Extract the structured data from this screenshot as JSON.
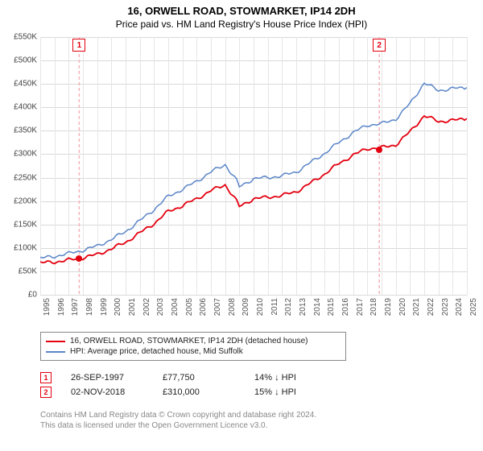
{
  "title": "16, ORWELL ROAD, STOWMARKET, IP14 2DH",
  "subtitle": "Price paid vs. HM Land Registry's House Price Index (HPI)",
  "chart": {
    "type": "line",
    "x_years": [
      1995,
      1996,
      1997,
      1998,
      1999,
      2000,
      2001,
      2002,
      2003,
      2004,
      2005,
      2006,
      2007,
      2008,
      2009,
      2010,
      2011,
      2012,
      2013,
      2014,
      2015,
      2016,
      2017,
      2018,
      2019,
      2020,
      2021,
      2022,
      2023,
      2024,
      2025
    ],
    "x_range": [
      1995,
      2025
    ],
    "ylim": [
      0,
      550000
    ],
    "ytick_step": 50000,
    "y_tick_labels": [
      "£0",
      "£50K",
      "£100K",
      "£150K",
      "£200K",
      "£250K",
      "£300K",
      "£350K",
      "£400K",
      "£450K",
      "£500K",
      "£550K"
    ],
    "grid_color": "#d9d9d9",
    "background_color": "#ffffff",
    "label_fontsize": 10,
    "series": [
      {
        "name": "16, ORWELL ROAD, STOWMARKET, IP14 2DH (detached house)",
        "color": "#e3000f",
        "line_width": 1.8,
        "points": [
          [
            1995,
            68000
          ],
          [
            1996,
            70000
          ],
          [
            1997,
            74000
          ],
          [
            1998,
            79000
          ],
          [
            1999,
            86000
          ],
          [
            2000,
            98000
          ],
          [
            2001,
            112000
          ],
          [
            2002,
            132000
          ],
          [
            2003,
            152000
          ],
          [
            2004,
            178000
          ],
          [
            2005,
            190000
          ],
          [
            2006,
            205000
          ],
          [
            2007,
            222000
          ],
          [
            2008,
            235000
          ],
          [
            2008.8,
            200000
          ],
          [
            2009,
            188000
          ],
          [
            2010,
            205000
          ],
          [
            2011,
            208000
          ],
          [
            2012,
            212000
          ],
          [
            2013,
            220000
          ],
          [
            2014,
            238000
          ],
          [
            2015,
            258000
          ],
          [
            2016,
            280000
          ],
          [
            2017,
            298000
          ],
          [
            2018,
            312000
          ],
          [
            2019,
            314000
          ],
          [
            2020,
            320000
          ],
          [
            2021,
            348000
          ],
          [
            2022,
            382000
          ],
          [
            2023,
            370000
          ],
          [
            2024,
            372000
          ],
          [
            2025,
            376000
          ]
        ]
      },
      {
        "name": "HPI: Average price, detached house, Mid Suffolk",
        "color": "#5a85c8",
        "line_width": 1.5,
        "points": [
          [
            1995,
            78000
          ],
          [
            1996,
            82000
          ],
          [
            1997,
            88000
          ],
          [
            1998,
            95000
          ],
          [
            1999,
            104000
          ],
          [
            2000,
            118000
          ],
          [
            2001,
            135000
          ],
          [
            2002,
            158000
          ],
          [
            2003,
            182000
          ],
          [
            2004,
            210000
          ],
          [
            2005,
            225000
          ],
          [
            2006,
            242000
          ],
          [
            2007,
            262000
          ],
          [
            2008,
            278000
          ],
          [
            2008.8,
            244000
          ],
          [
            2009,
            230000
          ],
          [
            2010,
            248000
          ],
          [
            2011,
            250000
          ],
          [
            2012,
            254000
          ],
          [
            2013,
            262000
          ],
          [
            2014,
            282000
          ],
          [
            2015,
            302000
          ],
          [
            2016,
            325000
          ],
          [
            2017,
            346000
          ],
          [
            2018,
            362000
          ],
          [
            2019,
            365000
          ],
          [
            2020,
            375000
          ],
          [
            2021,
            408000
          ],
          [
            2022,
            452000
          ],
          [
            2023,
            436000
          ],
          [
            2024,
            440000
          ],
          [
            2025,
            442000
          ]
        ]
      }
    ],
    "sales": [
      {
        "marker": "1",
        "year_frac": 1997.74,
        "price": 77750,
        "diff_text": "14% ↓ HPI",
        "date_label": "26-SEP-1997",
        "price_label": "£77,750",
        "color": "#e3000f"
      },
      {
        "marker": "2",
        "year_frac": 2018.84,
        "price": 310000,
        "diff_text": "15% ↓ HPI",
        "date_label": "02-NOV-2018",
        "price_label": "£310,000",
        "color": "#e3000f"
      }
    ],
    "sale_line_color": "#f5b3b8",
    "sale_line_dash": "4,3"
  },
  "legend": {
    "items": [
      {
        "color": "#e3000f",
        "label": "16, ORWELL ROAD, STOWMARKET, IP14 2DH (detached house)"
      },
      {
        "color": "#5a85c8",
        "label": "HPI: Average price, detached house, Mid Suffolk"
      }
    ]
  },
  "footer": {
    "line1": "Contains HM Land Registry data © Crown copyright and database right 2024.",
    "line2": "This data is licensed under the Open Government Licence v3.0."
  }
}
